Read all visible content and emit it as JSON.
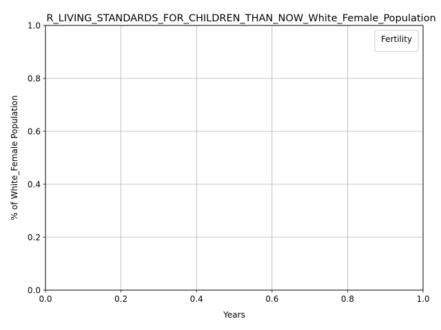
{
  "chart_data": {
    "type": "line",
    "title": "R_LIVING_STANDARDS_FOR_CHILDREN_THAN_NOW_White_Female_Population",
    "xlabel": "Years",
    "ylabel": "% of White_Female Population",
    "xlim": [
      0.0,
      1.0
    ],
    "ylim": [
      0.0,
      1.0
    ],
    "x_ticks": [
      0.0,
      0.2,
      0.4,
      0.6,
      0.8,
      1.0
    ],
    "y_ticks": [
      0.0,
      0.2,
      0.4,
      0.6,
      0.8,
      1.0
    ],
    "x_tick_labels": [
      "0.0",
      "0.2",
      "0.4",
      "0.6",
      "0.8",
      "1.0"
    ],
    "y_tick_labels": [
      "0.0",
      "0.2",
      "0.4",
      "0.6",
      "0.8",
      "1.0"
    ],
    "grid": true,
    "legend": {
      "title": "Fertility",
      "placement": "top-right",
      "entries": []
    },
    "series": []
  }
}
